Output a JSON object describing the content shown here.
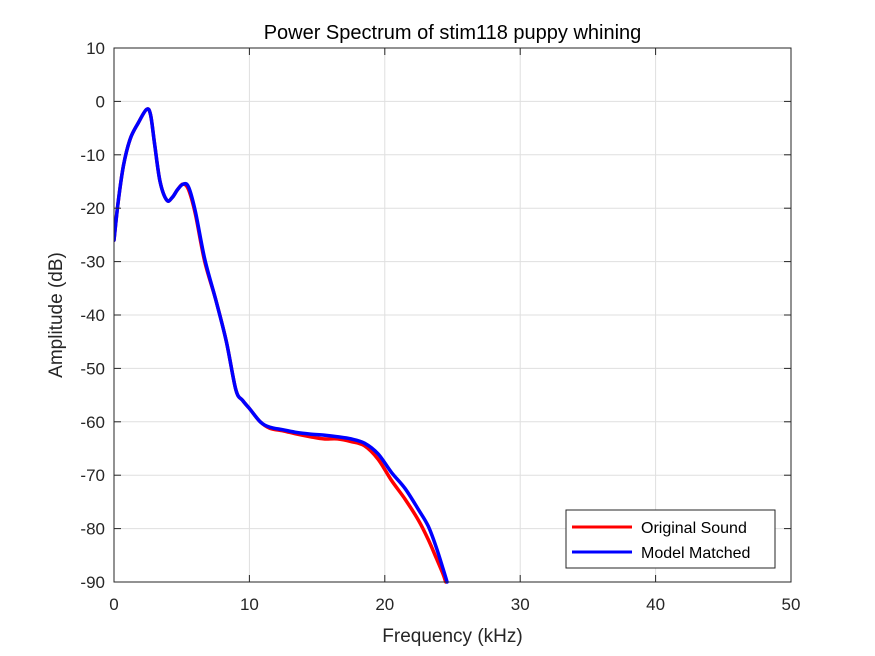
{
  "chart_data": {
    "type": "line",
    "title": "Power Spectrum of stim118 puppy whining",
    "xlabel": "Frequency (kHz)",
    "ylabel": "Amplitude (dB)",
    "xlim": [
      0,
      50
    ],
    "ylim": [
      -90,
      10
    ],
    "xticks": [
      0,
      10,
      20,
      30,
      40,
      50
    ],
    "yticks": [
      10,
      0,
      -10,
      -20,
      -30,
      -40,
      -50,
      -60,
      -70,
      -80,
      -90
    ],
    "grid": true,
    "legend_position": "bottom-right",
    "series": [
      {
        "name": "Original Sound",
        "color": "#ff0000",
        "x": [
          0,
          0.3,
          0.7,
          1.2,
          1.8,
          2.4,
          2.7,
          3.0,
          3.4,
          3.9,
          4.3,
          4.7,
          5.1,
          5.5,
          6.0,
          6.7,
          7.5,
          8.3,
          9.0,
          9.5,
          10.0,
          10.8,
          11.5,
          12.5,
          13.5,
          14.5,
          15.5,
          16.5,
          17.5,
          18.5,
          19.5,
          20.5,
          21.5,
          22.5,
          23.2,
          23.8,
          24.3,
          24.5
        ],
        "y": [
          -26,
          -19,
          -12,
          -7,
          -4,
          -1.5,
          -2.5,
          -8,
          -15,
          -18.5,
          -18,
          -16.5,
          -15.5,
          -16.5,
          -21,
          -30,
          -37,
          -45,
          -54,
          -56,
          -57.5,
          -60,
          -61.2,
          -61.7,
          -62.3,
          -62.8,
          -63.2,
          -63.2,
          -63.7,
          -64.5,
          -67,
          -71,
          -74.5,
          -78.5,
          -82,
          -85.5,
          -88.5,
          -90
        ]
      },
      {
        "name": "Model Matched",
        "color": "#0000ff",
        "x": [
          0,
          0.3,
          0.7,
          1.2,
          1.8,
          2.4,
          2.7,
          3.0,
          3.4,
          3.9,
          4.3,
          4.7,
          5.1,
          5.5,
          6.0,
          6.7,
          7.5,
          8.3,
          9.0,
          9.5,
          10.0,
          10.8,
          11.5,
          12.5,
          13.5,
          14.5,
          15.5,
          16.5,
          17.5,
          18.5,
          19.5,
          20.5,
          21.5,
          22.5,
          23.2,
          23.8,
          24.3,
          24.6
        ],
        "y": [
          -26,
          -19,
          -12,
          -7,
          -4,
          -1.5,
          -2.5,
          -8,
          -15,
          -18.5,
          -18,
          -16.5,
          -15.5,
          -16,
          -20.5,
          -29.5,
          -37,
          -45,
          -54,
          -56,
          -57.5,
          -60,
          -61,
          -61.5,
          -62,
          -62.3,
          -62.5,
          -62.8,
          -63.2,
          -64,
          -66,
          -69.5,
          -72.5,
          -76.5,
          -79.5,
          -83.5,
          -87.5,
          -90
        ]
      }
    ]
  }
}
